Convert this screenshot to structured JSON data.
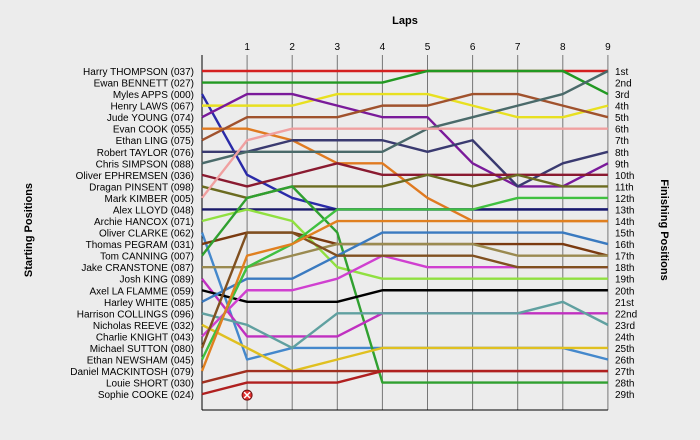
{
  "chart_data": {
    "type": "line",
    "title": "Laps",
    "xlabel": "Laps",
    "ylabel_left": "Starting Positions",
    "ylabel_right": "Finishing Positions",
    "x": [
      0,
      1,
      2,
      3,
      4,
      5,
      6,
      7,
      8,
      9
    ],
    "x_ticks": [
      "1",
      "2",
      "3",
      "4",
      "5",
      "6",
      "7",
      "8",
      "9"
    ],
    "y_range": [
      1,
      29
    ],
    "grid": "vertical",
    "finishing_labels": [
      "1st",
      "2nd",
      "3rd",
      "4th",
      "5th",
      "6th",
      "7th",
      "8th",
      "9th",
      "10th",
      "11th",
      "12th",
      "13th",
      "14th",
      "15th",
      "16th",
      "17th",
      "18th",
      "19th",
      "20th",
      "21st",
      "22nd",
      "23rd",
      "24th",
      "25th",
      "26th",
      "27th",
      "28th",
      "29th"
    ],
    "series": [
      {
        "name": "Harry  THOMPSON (037)",
        "color": "#d42020",
        "positions": [
          1,
          1,
          1,
          1,
          1,
          1,
          1,
          1,
          1,
          1
        ]
      },
      {
        "name": "Ewan BENNETT (027)",
        "color": "#229922",
        "positions": [
          2,
          2,
          2,
          2,
          2,
          1,
          1,
          1,
          1,
          3
        ]
      },
      {
        "name": "Myles APPS (000)",
        "color": "#2a2aa8",
        "positions": [
          3,
          10,
          12,
          13,
          13,
          13,
          13,
          13,
          13,
          13
        ]
      },
      {
        "name": "Henry LAWS (067)",
        "color": "#e8e020",
        "positions": [
          4,
          4,
          4,
          3,
          3,
          3,
          4,
          5,
          5,
          4
        ]
      },
      {
        "name": "Jude YOUNG (074)",
        "color": "#7a1a9a",
        "positions": [
          5,
          3,
          3,
          4,
          5,
          5,
          9,
          11,
          11,
          9
        ]
      },
      {
        "name": "Evan COOK (055)",
        "color": "#e07a20",
        "positions": [
          6,
          6,
          7,
          9,
          9,
          12,
          14,
          14,
          14,
          14
        ]
      },
      {
        "name": "Ethan LING (075)",
        "color": "#a0522d",
        "positions": [
          7,
          5,
          5,
          5,
          4,
          4,
          3,
          3,
          4,
          5
        ]
      },
      {
        "name": "Robert TAYLOR (076)",
        "color": "#3a3a70",
        "positions": [
          8,
          8,
          7,
          7,
          7,
          8,
          7,
          11,
          9,
          8
        ]
      },
      {
        "name": "Chris SIMPSON (088)",
        "color": "#4a6a6a",
        "positions": [
          9,
          8,
          8,
          8,
          8,
          6,
          5,
          4,
          3,
          1
        ]
      },
      {
        "name": "Oliver EPHREMSEN (036)",
        "color": "#8a1a30",
        "positions": [
          10,
          11,
          10,
          9,
          10,
          10,
          10,
          10,
          10,
          10
        ]
      },
      {
        "name": "Dragan PINSENT (098)",
        "color": "#6b6b20",
        "positions": [
          11,
          12,
          11,
          11,
          11,
          10,
          11,
          10,
          11,
          11
        ]
      },
      {
        "name": "Mark KIMBER (005)",
        "color": "#f0a0a0",
        "positions": [
          12,
          7,
          6,
          6,
          6,
          6,
          6,
          6,
          6,
          6
        ]
      },
      {
        "name": "Alex LLOYD (048)",
        "color": "#1a1a6a",
        "positions": [
          13,
          13,
          13,
          13,
          13,
          13,
          13,
          13,
          13,
          13
        ]
      },
      {
        "name": "Archie HANCOX (071)",
        "color": "#90e040",
        "positions": [
          14,
          13,
          14,
          18,
          19,
          19,
          19,
          19,
          19,
          19
        ]
      },
      {
        "name": "Oliver CLARKE (062)",
        "color": "#4488cc",
        "positions": [
          15,
          26,
          25,
          25,
          25,
          25,
          25,
          25,
          25,
          26
        ]
      },
      {
        "name": "Thomas PEGRAM (031)",
        "color": "#7a3a10",
        "positions": [
          16,
          15,
          15,
          16,
          16,
          16,
          16,
          16,
          16,
          17
        ]
      },
      {
        "name": "Tom CANNING (007)",
        "color": "#30a030",
        "positions": [
          17,
          12,
          11,
          15,
          28,
          28,
          28,
          28,
          28,
          28
        ]
      },
      {
        "name": "Jake CRANSTONE (087)",
        "color": "#9a8a50",
        "positions": [
          18,
          18,
          17,
          16,
          16,
          16,
          16,
          17,
          17,
          17
        ]
      },
      {
        "name": "Josh KING (089)",
        "color": "#c030c0",
        "positions": [
          19,
          24,
          24,
          24,
          22,
          22,
          22,
          22,
          22,
          22
        ]
      },
      {
        "name": "Axel LA FLAMME (059)",
        "color": "#000000",
        "positions": [
          20,
          21,
          21,
          21,
          20,
          20,
          20,
          20,
          20,
          20
        ]
      },
      {
        "name": "Harley WHITE (085)",
        "color": "#3a7ac0",
        "positions": [
          21,
          19,
          19,
          17,
          15,
          15,
          15,
          15,
          15,
          16
        ]
      },
      {
        "name": "Harrison COLLINGS (096)",
        "color": "#60a0a0",
        "positions": [
          22,
          23,
          25,
          22,
          22,
          22,
          22,
          22,
          21,
          23
        ]
      },
      {
        "name": "Nicholas REEVE (032)",
        "color": "#e0c020",
        "positions": [
          23,
          25,
          27,
          26,
          25,
          25,
          25,
          25,
          25,
          25
        ]
      },
      {
        "name": "Charlie KNIGHT (043)",
        "color": "#d040d0",
        "positions": [
          24,
          20,
          20,
          19,
          17,
          18,
          18,
          18,
          18,
          18
        ]
      },
      {
        "name": "Michael SUTTON (080)",
        "color": "#805020",
        "positions": [
          25,
          15,
          15,
          17,
          17,
          17,
          17,
          18,
          18,
          18
        ]
      },
      {
        "name": "Ethan NEWSHAM (045)",
        "color": "#40c040",
        "positions": [
          26,
          18,
          16,
          13,
          13,
          13,
          13,
          12,
          12,
          12
        ]
      },
      {
        "name": "Daniel MACKINTOSH (079)",
        "color": "#e08020",
        "positions": [
          27,
          17,
          16,
          14,
          14,
          14,
          14,
          14,
          14,
          14
        ]
      },
      {
        "name": "Louie SHORT (030)",
        "color": "#a03020",
        "positions": [
          28,
          27,
          27,
          27,
          27,
          27,
          27,
          27,
          27,
          27
        ]
      },
      {
        "name": "Sophie COOKE (024)",
        "color": "#b02020",
        "positions": [
          29,
          28,
          28,
          28,
          27,
          27,
          27,
          27,
          27,
          27
        ]
      }
    ],
    "annotations": [
      {
        "type": "retired-marker",
        "series": "Sophie COOKE (024)",
        "x": 1,
        "y": 29
      }
    ]
  }
}
